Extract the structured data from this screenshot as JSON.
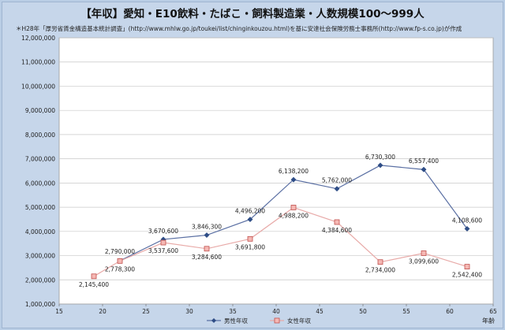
{
  "chart_data": {
    "type": "line",
    "title": "【年収】愛知・E10飲料・たばこ・飼料製造業・人数規模100～999人",
    "subtitle": "＊H28年「厚労省賃金構造基本統計調査」(http://www.mhlw.go.jp/toukei/list/chinginkouzou.html)を基に安達社会保険労務士事務所(http://www.fp-s.co.jp)が作成",
    "xlabel": "年齢",
    "ylabel": "",
    "xlim": [
      15,
      65
    ],
    "xticks": [
      15,
      20,
      25,
      30,
      35,
      40,
      45,
      50,
      55,
      60,
      65
    ],
    "ylim": [
      1000000,
      12000000
    ],
    "yticks": [
      "1,000,000",
      "2,000,000",
      "3,000,000",
      "4,000,000",
      "5,000,000",
      "6,000,000",
      "7,000,000",
      "8,000,000",
      "9,000,000",
      "10,000,000",
      "11,000,000",
      "12,000,000"
    ],
    "grid": true,
    "legend_position": "bottom",
    "series": [
      {
        "name": "男性年収",
        "color": "#2e4d86",
        "marker": "diamond",
        "x": [
          22,
          27,
          32,
          37,
          42,
          47,
          52,
          57,
          62
        ],
        "values": [
          2790000,
          3670600,
          3846300,
          4496200,
          6138200,
          5762000,
          6730300,
          6557400,
          4108600
        ],
        "labels": [
          "2,790,000",
          "3,670,600",
          "3,846,300",
          "4,496,200",
          "6,138,200",
          "5,762,000",
          "6,730,300",
          "6,557,400",
          "4,108,600"
        ]
      },
      {
        "name": "女性年収",
        "color": "#e08a87",
        "marker": "square",
        "x": [
          19,
          22,
          27,
          32,
          37,
          42,
          47,
          52,
          57,
          62
        ],
        "values": [
          2145400,
          2778300,
          3537600,
          3284600,
          3691800,
          4988200,
          4384600,
          2734000,
          3099600,
          2542400
        ],
        "labels": [
          "2,145,400",
          "2,778,300",
          "3,537,600",
          "3,284,600",
          "3,691,800",
          "4,988,200",
          "4,384,600",
          "2,734,000",
          "3,099,600",
          "2,542,400"
        ]
      }
    ]
  }
}
